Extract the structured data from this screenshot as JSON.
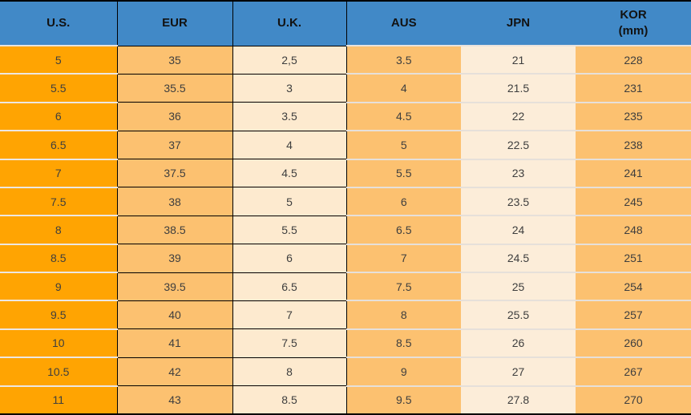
{
  "table": {
    "title": "shoe-size-conversion-table",
    "columns": [
      {
        "key": "us",
        "label": "U.S."
      },
      {
        "key": "eur",
        "label": "EUR"
      },
      {
        "key": "uk",
        "label": "U.K."
      },
      {
        "key": "aus",
        "label": "AUS"
      },
      {
        "key": "jpn",
        "label": "JPN"
      },
      {
        "key": "kor",
        "label": "KOR",
        "label_line2": "(mm)"
      }
    ],
    "rows": [
      [
        "5",
        "35",
        "2,5",
        "3.5",
        "21",
        "228"
      ],
      [
        "5.5",
        "35.5",
        "3",
        "4",
        "21.5",
        "231"
      ],
      [
        "6",
        "36",
        "3.5",
        "4.5",
        "22",
        "235"
      ],
      [
        "6.5",
        "37",
        "4",
        "5",
        "22.5",
        "238"
      ],
      [
        "7",
        "37.5",
        "4.5",
        "5.5",
        "23",
        "241"
      ],
      [
        "7.5",
        "38",
        "5",
        "6",
        "23.5",
        "245"
      ],
      [
        "8",
        "38.5",
        "5.5",
        "6.5",
        "24",
        "248"
      ],
      [
        "8.5",
        "39",
        "6",
        "7",
        "24.5",
        "251"
      ],
      [
        "9",
        "39.5",
        "6.5",
        "7.5",
        "25",
        "254"
      ],
      [
        "9.5",
        "40",
        "7",
        "8",
        "25.5",
        "257"
      ],
      [
        "10",
        "41",
        "7.5",
        "8.5",
        "26",
        "260"
      ],
      [
        "10.5",
        "42",
        "8",
        "9",
        "27",
        "267"
      ],
      [
        "11",
        "43",
        "8.5",
        "9.5",
        "27.8",
        "270"
      ]
    ]
  },
  "colors": {
    "header_blue": "#4189C7",
    "header_text": "#121212",
    "us_column_orange": "#FFA402",
    "mid_orange": "#FCC170",
    "uk_cream": "#FDEACF",
    "jpn_cream": "#FCEDD9",
    "light_separator": "#E6E0DA",
    "black_border": "#000000",
    "cell_text": "#3E3E3E"
  }
}
